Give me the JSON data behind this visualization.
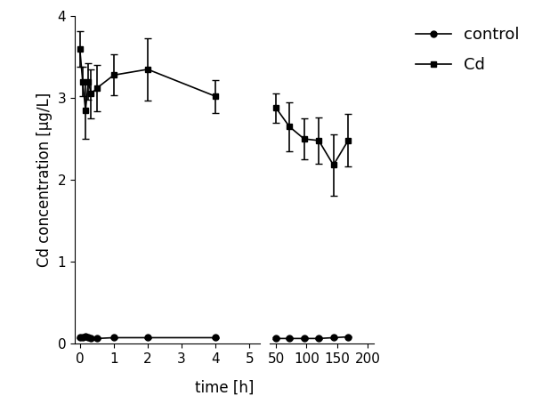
{
  "left_cd_x": [
    0,
    0.083,
    0.167,
    0.25,
    0.333,
    0.5,
    1.0,
    2.0,
    4.0
  ],
  "left_cd_y": [
    3.6,
    3.2,
    2.85,
    3.2,
    3.05,
    3.12,
    3.28,
    3.35,
    3.02
  ],
  "left_cd_yerr": [
    0.22,
    0.18,
    0.35,
    0.22,
    0.3,
    0.28,
    0.25,
    0.38,
    0.2
  ],
  "left_ctrl_x": [
    0,
    0.083,
    0.167,
    0.25,
    0.333,
    0.5,
    1.0,
    2.0,
    4.0
  ],
  "left_ctrl_y": [
    0.07,
    0.08,
    0.09,
    0.07,
    0.06,
    0.06,
    0.07,
    0.07,
    0.07
  ],
  "left_ctrl_yerr": [
    0.01,
    0.01,
    0.01,
    0.01,
    0.01,
    0.01,
    0.01,
    0.01,
    0.01
  ],
  "right_cd_x": [
    50,
    72,
    96,
    120,
    144,
    168
  ],
  "right_cd_y": [
    2.88,
    2.65,
    2.5,
    2.48,
    2.18,
    2.48
  ],
  "right_cd_yerr": [
    0.18,
    0.3,
    0.25,
    0.28,
    0.38,
    0.32
  ],
  "right_ctrl_x": [
    50,
    72,
    96,
    120,
    144,
    168
  ],
  "right_ctrl_y": [
    0.06,
    0.06,
    0.06,
    0.06,
    0.07,
    0.08
  ],
  "right_ctrl_yerr": [
    0.01,
    0.01,
    0.01,
    0.01,
    0.01,
    0.01
  ],
  "ylim": [
    0,
    4
  ],
  "yticks": [
    0,
    1,
    2,
    3,
    4
  ],
  "left_xlim": [
    -0.15,
    5.3
  ],
  "left_xticks": [
    0,
    1,
    2,
    3,
    4,
    5
  ],
  "right_xlim": [
    40,
    210
  ],
  "right_xticks": [
    50,
    100,
    150,
    200
  ],
  "xlabel": "time [h]",
  "ylabel": "Cd concentration [µg/L]",
  "label_ctrl": "control",
  "label_cd": "Cd",
  "color": "#000000",
  "linewidth": 1.2,
  "markersize": 5,
  "capsize": 3,
  "label_fontsize": 12,
  "tick_fontsize": 11,
  "legend_fontsize": 13
}
